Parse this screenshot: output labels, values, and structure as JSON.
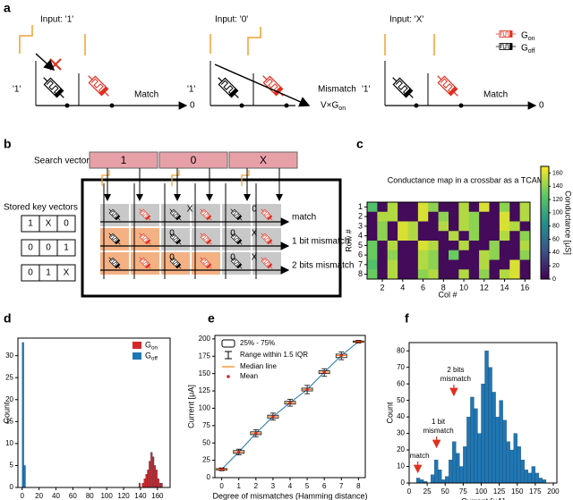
{
  "panel_labels": [
    "a",
    "b",
    "c",
    "d",
    "e",
    "f"
  ],
  "diagram_a": {
    "inputs": [
      "Input: '1'",
      "Input: '0'",
      "Input: 'X'"
    ],
    "stored": [
      "'1'",
      "'1'",
      "'1'"
    ],
    "outputs": [
      {
        "label": "Match",
        "result": "0"
      },
      {
        "label": "Mismatch",
        "result": "V×G",
        "result_sub": "on"
      },
      {
        "label": "Match",
        "result": "0"
      }
    ],
    "legend": [
      {
        "text": "G",
        "sub": "on"
      },
      {
        "text": "G",
        "sub": "off"
      }
    ]
  },
  "diagram_b": {
    "search_label": "Search vector",
    "search_vector": [
      "1",
      "0",
      "X"
    ],
    "stored_label": "Stored key vectors",
    "stored_keys": [
      [
        "1",
        "X",
        "0"
      ],
      [
        "0",
        "0",
        "1"
      ],
      [
        "0",
        "1",
        "X"
      ]
    ],
    "cell_labels": [
      [
        "X",
        "0"
      ],
      [
        "0",
        "0",
        "X"
      ],
      [
        "0",
        "0",
        "X"
      ]
    ],
    "row_outputs": [
      "match",
      "1 bit mismatch",
      "2 bits mismatch"
    ]
  },
  "chart_data": [
    {
      "type": "heatmap",
      "title": "Conductance map in a crossbar as a TCAM",
      "x_label": "Col #",
      "y_label": "Row #",
      "colorbar_label": "Conductance [μS]",
      "colormap": "viridis",
      "x": [
        1,
        2,
        3,
        4,
        5,
        6,
        7,
        8,
        9,
        10,
        11,
        12,
        13,
        14,
        15,
        16
      ],
      "y": [
        1,
        2,
        3,
        4,
        5,
        6,
        7,
        8
      ],
      "xticks": [
        2,
        4,
        6,
        8,
        10,
        12,
        14,
        16
      ],
      "yticks": [
        1,
        2,
        3,
        4,
        5,
        6,
        7,
        8
      ],
      "clim": [
        0,
        170
      ],
      "cticks": [
        0,
        20,
        40,
        60,
        80,
        100,
        120,
        140,
        160
      ],
      "values": [
        [
          120,
          5,
          150,
          5,
          5,
          160,
          140,
          5,
          5,
          150,
          5,
          160,
          5,
          140,
          5,
          150
        ],
        [
          5,
          150,
          150,
          5,
          5,
          160,
          5,
          140,
          5,
          150,
          140,
          5,
          5,
          160,
          5,
          150
        ],
        [
          5,
          140,
          5,
          160,
          150,
          5,
          5,
          150,
          5,
          150,
          140,
          5,
          5,
          160,
          150,
          5
        ],
        [
          5,
          140,
          5,
          160,
          150,
          5,
          5,
          5,
          150,
          5,
          140,
          5,
          5,
          150,
          5,
          140
        ],
        [
          130,
          5,
          150,
          5,
          5,
          160,
          150,
          5,
          5,
          150,
          5,
          5,
          140,
          5,
          5,
          150
        ],
        [
          130,
          5,
          140,
          5,
          5,
          150,
          140,
          5,
          130,
          5,
          5,
          150,
          140,
          5,
          5,
          140
        ],
        [
          120,
          5,
          150,
          5,
          5,
          150,
          140,
          5,
          5,
          5,
          5,
          150,
          5,
          5,
          160,
          5
        ],
        [
          130,
          5,
          150,
          5,
          5,
          140,
          150,
          5,
          5,
          150,
          5,
          140,
          5,
          150,
          160,
          5
        ]
      ]
    },
    {
      "type": "histogram",
      "x_label": "Conductance [μS]",
      "y_label": "Count",
      "xlim": [
        -5,
        175
      ],
      "ylim": [
        0,
        34
      ],
      "xticks": [
        0,
        20,
        40,
        60,
        80,
        100,
        120,
        140,
        160
      ],
      "yticks": [
        0,
        5,
        10,
        15,
        20,
        25,
        30
      ],
      "series": [
        {
          "name": "G",
          "name_sub": "on",
          "color": "#d62728",
          "bins": [
            138,
            140,
            142,
            144,
            146,
            148,
            150,
            152,
            154,
            156,
            158,
            160,
            162,
            164,
            166
          ],
          "values": [
            1,
            0,
            1,
            2,
            3,
            4,
            6,
            8,
            7,
            5,
            4,
            2,
            1,
            1
          ]
        },
        {
          "name": "G",
          "name_sub": "off",
          "color": "#1f77b4",
          "bins": [
            0,
            2,
            4,
            6
          ],
          "values": [
            33,
            5,
            0
          ]
        }
      ]
    },
    {
      "type": "box",
      "x_label": "Degree of mismatches (Hamming distance)",
      "y_label": "Current [μA]",
      "x": [
        0,
        1,
        2,
        3,
        4,
        5,
        6,
        7,
        8
      ],
      "xlim": [
        -0.4,
        8.4
      ],
      "ylim": [
        0,
        205
      ],
      "xticks": [
        0,
        1,
        2,
        3,
        4,
        5,
        6,
        7,
        8
      ],
      "yticks": [
        0,
        25,
        50,
        75,
        100,
        125,
        150,
        175,
        200
      ],
      "line_color": "#1f77b4",
      "median_color": "#ff7f0e",
      "mean_color": "#d62728",
      "legend": [
        "25% - 75%",
        "Range within 1.5 IQR",
        "Median line",
        "Mean"
      ],
      "min": [
        10,
        33,
        59,
        83,
        103,
        121,
        146,
        170,
        194
      ],
      "q1": [
        11,
        35,
        62,
        86,
        106,
        125,
        150,
        173,
        195
      ],
      "median": [
        12,
        37,
        64,
        88,
        108,
        127,
        152,
        176,
        196
      ],
      "q3": [
        13,
        39,
        66,
        90,
        110,
        129,
        154,
        178,
        197
      ],
      "max": [
        14,
        41,
        69,
        93,
        113,
        133,
        157,
        181,
        198
      ],
      "mean": [
        12,
        37,
        64,
        88,
        108,
        127,
        152,
        176,
        196
      ]
    },
    {
      "type": "histogram",
      "x_label": "Current [μA]",
      "y_label": "Count",
      "xlim": [
        0,
        205
      ],
      "ylim": [
        0,
        85
      ],
      "xticks": [
        0,
        25,
        50,
        75,
        100,
        125,
        150,
        175,
        200
      ],
      "yticks": [
        0,
        10,
        20,
        30,
        40,
        50,
        60,
        70,
        80
      ],
      "series": [
        {
          "color": "#1f77b4",
          "bins": [
            10,
            15,
            20,
            25,
            30,
            35,
            40,
            45,
            50,
            55,
            60,
            65,
            70,
            75,
            80,
            85,
            90,
            95,
            100,
            105,
            110,
            115,
            120,
            125,
            130,
            135,
            140,
            145,
            150,
            155,
            160,
            165,
            170,
            175,
            180,
            185,
            190
          ],
          "values": [
            3,
            2,
            1,
            0,
            5,
            14,
            8,
            2,
            4,
            14,
            25,
            18,
            10,
            22,
            40,
            52,
            45,
            30,
            60,
            80,
            70,
            55,
            40,
            50,
            38,
            25,
            20,
            30,
            22,
            14,
            8,
            6,
            10,
            6,
            3,
            2
          ]
        }
      ],
      "annotations": [
        {
          "lines": [
            "match"
          ],
          "x": 12
        },
        {
          "lines": [
            "1 bit",
            "mismatch"
          ],
          "x": 38
        },
        {
          "lines": [
            "2 bits",
            "mismatch"
          ],
          "x": 62
        }
      ]
    }
  ]
}
